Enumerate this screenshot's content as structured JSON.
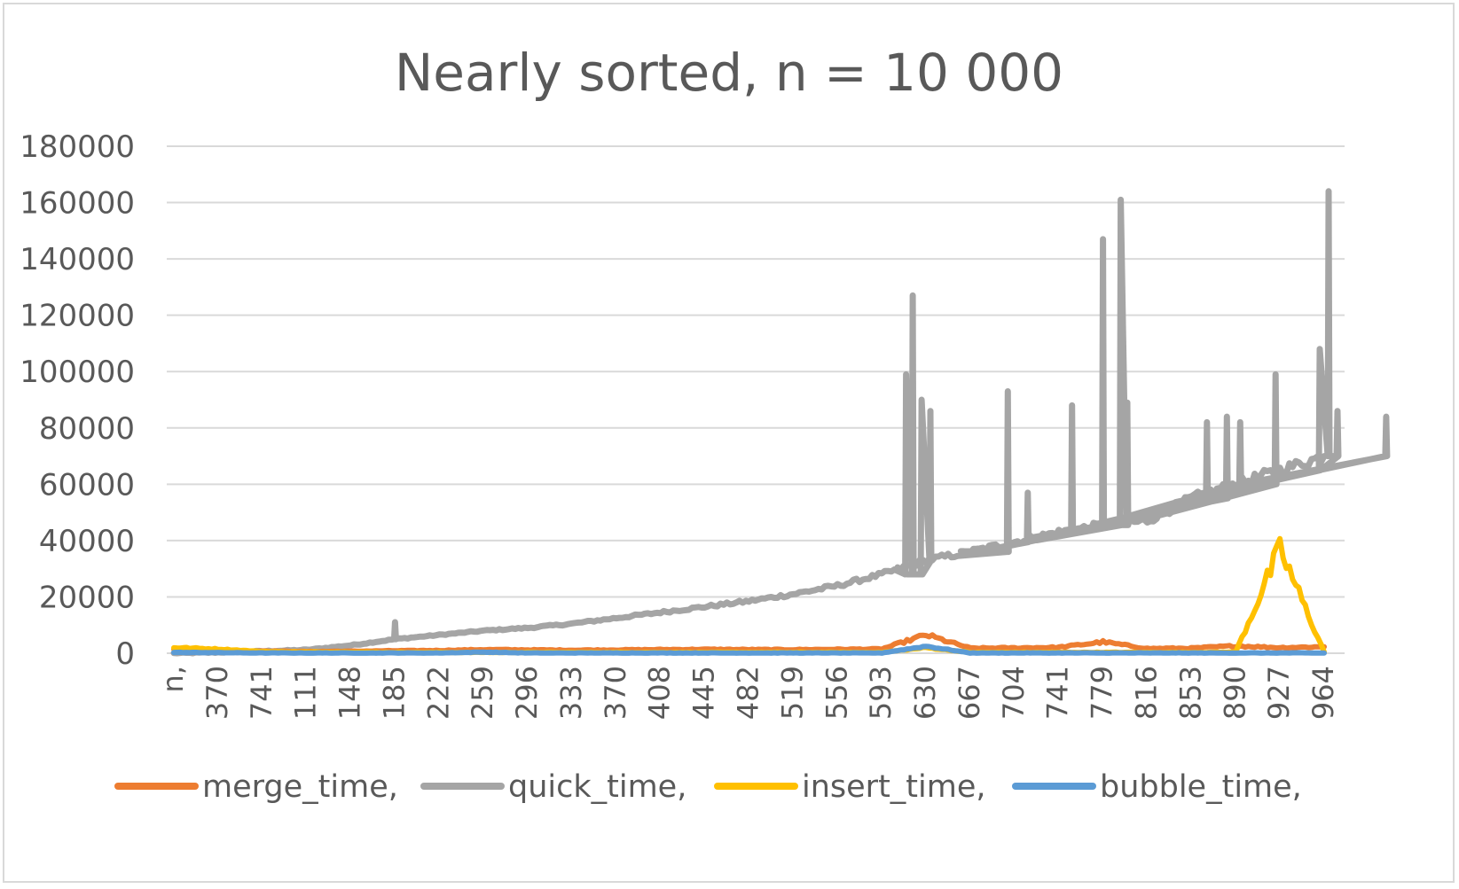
{
  "chart_data": {
    "type": "line",
    "title": "Nearly sorted, n = 10 000",
    "xlabel": "",
    "ylabel": "",
    "ylim": [
      0,
      180000
    ],
    "yticks": [
      0,
      20000,
      40000,
      60000,
      80000,
      100000,
      120000,
      140000,
      160000,
      180000
    ],
    "grid": true,
    "legend_position": "bottom",
    "x_tick_labels": [
      "n,",
      "370",
      "741",
      "111",
      "148",
      "185",
      "222",
      "259",
      "296",
      "333",
      "370",
      "408",
      "445",
      "482",
      "519",
      "556",
      "593",
      "630",
      "667",
      "704",
      "741",
      "779",
      "816",
      "853",
      "890",
      "927",
      "964"
    ],
    "series": [
      {
        "name": "merge_time,",
        "color": "#ED7D31",
        "values": [
          1500,
          900,
          800,
          600,
          700,
          900,
          1000,
          1300,
          1200,
          1100,
          1200,
          1300,
          1400,
          1300,
          1300,
          1400,
          1500,
          6500,
          1800,
          1900,
          2100,
          4000,
          1700,
          1800,
          2600,
          2000,
          2300
        ]
      },
      {
        "name": "quick_time,",
        "color": "#A5A5A5",
        "values": [
          0,
          300,
          700,
          1200,
          2800,
          5000,
          6500,
          8000,
          9000,
          10500,
          12500,
          14500,
          16500,
          18500,
          21000,
          24000,
          28000,
          33000,
          36000,
          39500,
          43000,
          45500,
          47000,
          55000,
          60000,
          65000,
          70000
        ],
        "spikes": [
          {
            "x": 5.0,
            "y": 11000
          },
          {
            "x": 16.55,
            "y": 99000
          },
          {
            "x": 16.7,
            "y": 127000
          },
          {
            "x": 16.9,
            "y": 90000
          },
          {
            "x": 17.1,
            "y": 86000
          },
          {
            "x": 18.85,
            "y": 93000
          },
          {
            "x": 19.3,
            "y": 57000
          },
          {
            "x": 20.3,
            "y": 88000
          },
          {
            "x": 21.0,
            "y": 147000
          },
          {
            "x": 21.4,
            "y": 161000
          },
          {
            "x": 21.55,
            "y": 89000
          },
          {
            "x": 23.35,
            "y": 82000
          },
          {
            "x": 23.8,
            "y": 84000
          },
          {
            "x": 24.1,
            "y": 82000
          },
          {
            "x": 24.9,
            "y": 99000
          },
          {
            "x": 25.9,
            "y": 108000
          },
          {
            "x": 26.1,
            "y": 164000
          },
          {
            "x": 26.3,
            "y": 86000
          },
          {
            "x": 27.4,
            "y": 84000
          }
        ]
      },
      {
        "name": "insert_time,",
        "color": "#FFC000",
        "values": [
          2000,
          1500,
          600,
          400,
          400,
          300,
          300,
          300,
          300,
          300,
          300,
          300,
          300,
          300,
          300,
          300,
          300,
          2000,
          300,
          300,
          300,
          300,
          300,
          300,
          400,
          37000,
          400
        ]
      },
      {
        "name": "bubble_time,",
        "color": "#5B9BD5",
        "values": [
          300,
          200,
          100,
          100,
          100,
          100,
          100,
          400,
          100,
          100,
          100,
          100,
          100,
          100,
          100,
          100,
          100,
          2500,
          100,
          100,
          100,
          100,
          100,
          100,
          100,
          100,
          100
        ]
      }
    ]
  }
}
